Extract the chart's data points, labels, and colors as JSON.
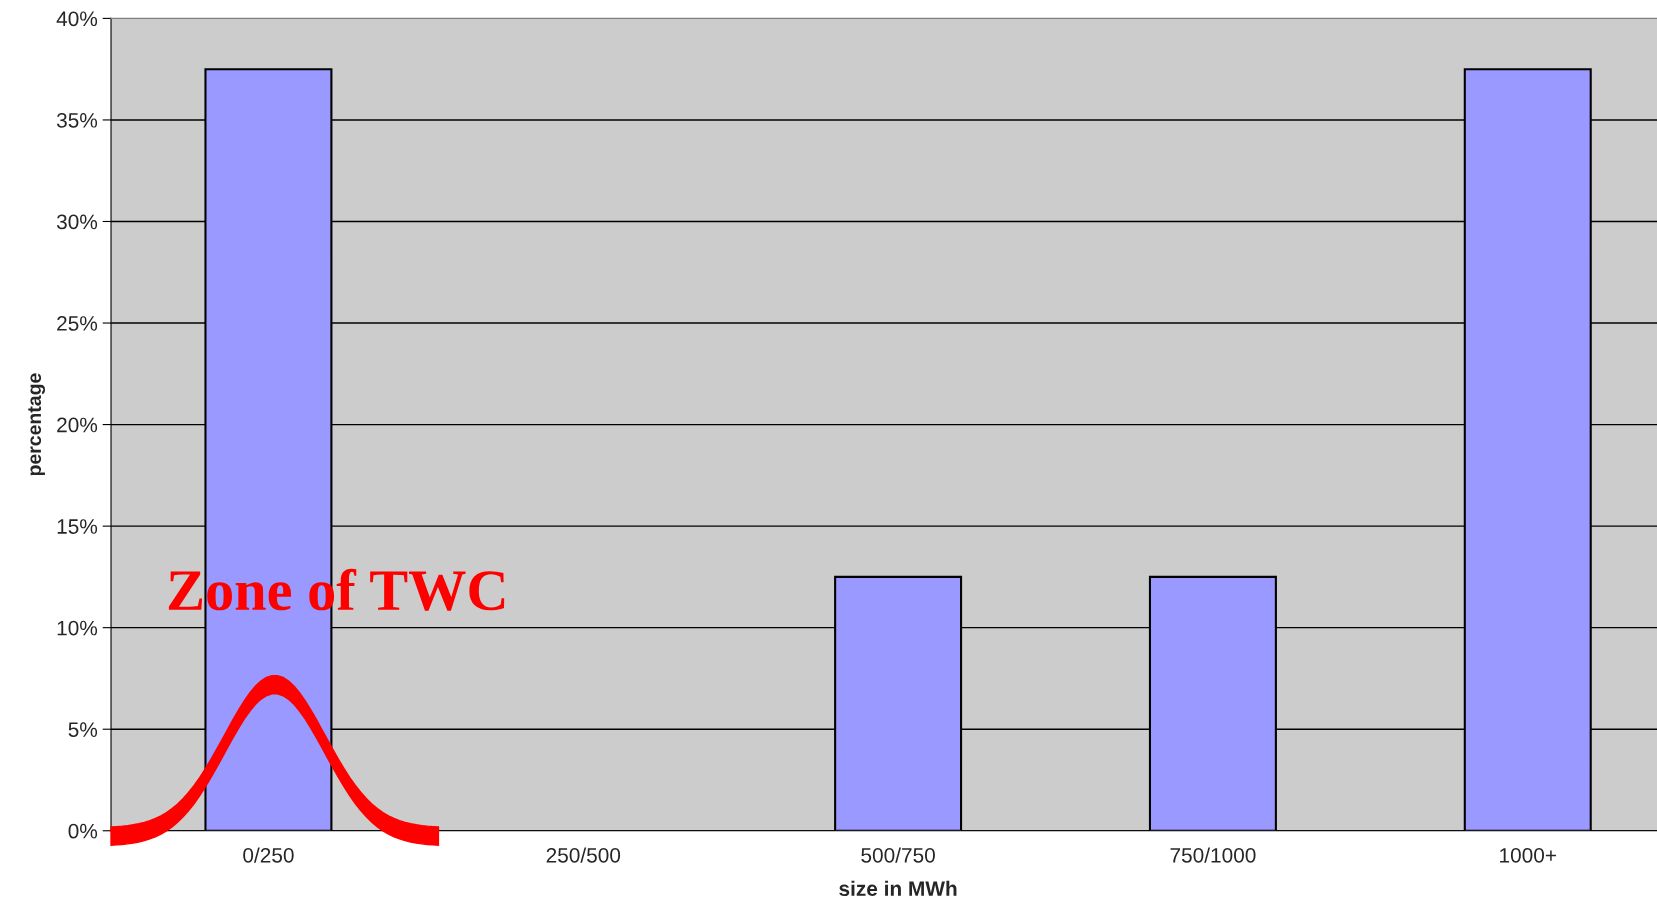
{
  "chart_data": {
    "type": "bar",
    "xlabel": "size in MWh",
    "ylabel": "percentage",
    "categories": [
      "0/250",
      "250/500",
      "500/750",
      "750/1000",
      "1000+"
    ],
    "values": [
      37.5,
      0,
      12.5,
      12.5,
      37.5
    ],
    "color": "#9999ff",
    "ylim": [
      0,
      40
    ],
    "yticks": [
      {
        "value": 0,
        "label": "0%"
      },
      {
        "value": 5,
        "label": "5%"
      },
      {
        "value": 10,
        "label": "10%"
      },
      {
        "value": 15,
        "label": "15%"
      },
      {
        "value": 20,
        "label": "20%"
      },
      {
        "value": 25,
        "label": "25%"
      },
      {
        "value": 30,
        "label": "30%"
      },
      {
        "value": 35,
        "label": "35%"
      },
      {
        "value": 40,
        "label": "40%"
      }
    ],
    "grid": "y",
    "annotations": [
      "Zone of TWC"
    ]
  }
}
